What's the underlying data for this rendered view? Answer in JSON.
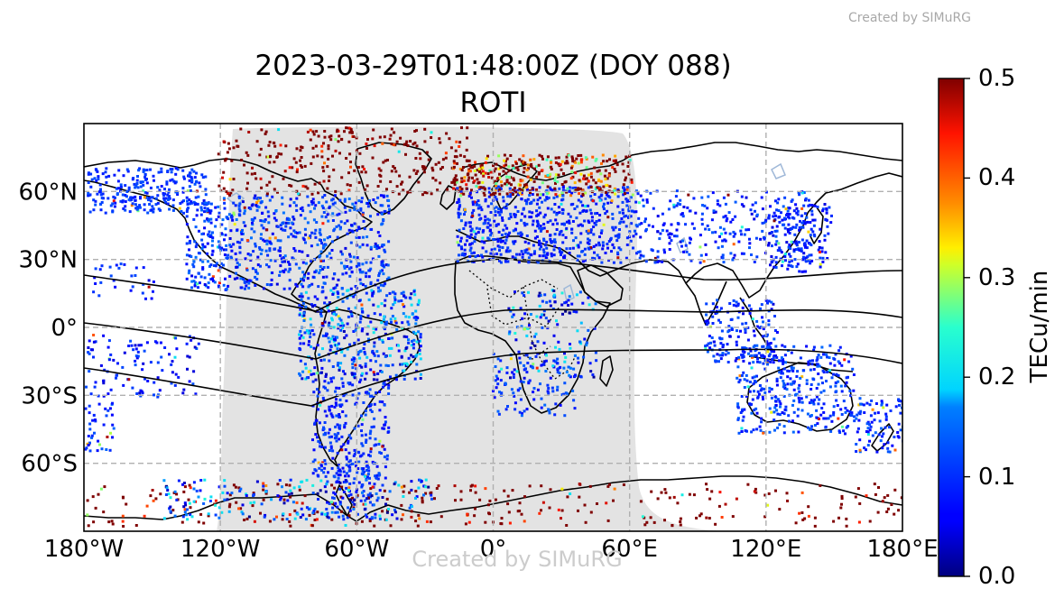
{
  "watermark_top": "Created by SIMuRG",
  "watermark_center": "Created by SIMuRG",
  "title_line1": "2023-03-29T01:48:00Z (DOY 088)",
  "title_line2": "ROTI",
  "map": {
    "projection": "PlateCarree",
    "lon_range": [
      -180,
      180
    ],
    "lat_range": [
      -90,
      90
    ],
    "x_ticks": [
      {
        "lon": -180,
        "label": "180°W"
      },
      {
        "lon": -120,
        "label": "120°W"
      },
      {
        "lon": -60,
        "label": "60°W"
      },
      {
        "lon": 0,
        "label": "0°"
      },
      {
        "lon": 60,
        "label": "60°E"
      },
      {
        "lon": 120,
        "label": "120°E"
      },
      {
        "lon": 180,
        "label": "180°E"
      }
    ],
    "y_ticks": [
      {
        "lat": 60,
        "label": "60°N"
      },
      {
        "lat": 30,
        "label": "30°N"
      },
      {
        "lat": 0,
        "label": "0°"
      },
      {
        "lat": -30,
        "label": "30°S"
      },
      {
        "lat": -60,
        "label": "60°S"
      }
    ],
    "grid": true,
    "shading": "dayside / sunlit region shown in light grey",
    "magnetic_equator_lines": 3,
    "colors": {
      "shading": "#e3e3e3",
      "coast": "#000000",
      "grid": "#b0b0b0",
      "lakes": "#9fb8d8"
    }
  },
  "colorbar": {
    "label": "TECu/min",
    "min": 0.0,
    "max": 0.5,
    "ticks": [
      {
        "value": 0.5,
        "label": "0.5"
      },
      {
        "value": 0.4,
        "label": "0.4"
      },
      {
        "value": 0.3,
        "label": "0.3"
      },
      {
        "value": 0.2,
        "label": "0.2"
      },
      {
        "value": 0.1,
        "label": "0.1"
      },
      {
        "value": 0.0,
        "label": "0.0"
      }
    ],
    "colormap": "jet"
  }
}
